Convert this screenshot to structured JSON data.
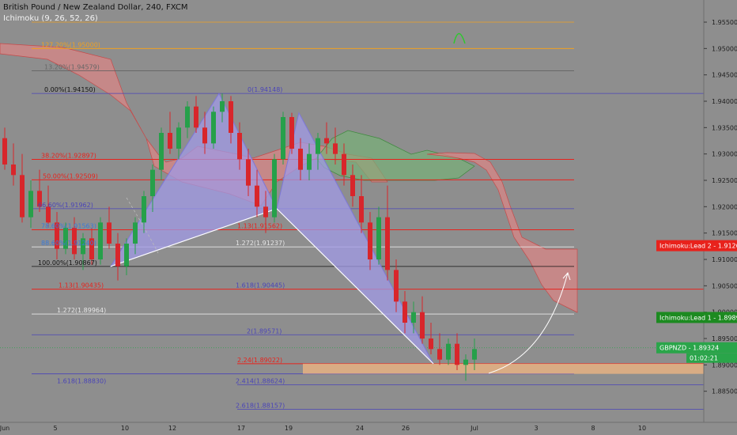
{
  "header": {
    "symbol_title": "British Pound / New Zealand Dollar, 240, FXCM",
    "indicator_label": "Ichimoku (9, 26, 52, 26)"
  },
  "price_axis": {
    "ticks": [
      "1.95500",
      "1.95000",
      "1.94500",
      "1.94000",
      "1.93500",
      "1.93000",
      "1.92500",
      "1.92000",
      "1.91500",
      "1.91000",
      "1.90500",
      "1.90000",
      "1.89500",
      "1.89000",
      "1.88500"
    ]
  },
  "time_axis": {
    "ticks": [
      "Jun",
      "5",
      "10",
      "12",
      "17",
      "19",
      "24",
      "26",
      "Jul",
      "3",
      "8",
      "10"
    ]
  },
  "axis_badges": [
    {
      "text": "Ichimoku:Lead 2",
      "value": "1.91261",
      "color": "#e8221c"
    },
    {
      "text": "Ichimoku:Lead 1",
      "value": "1.89899",
      "color": "#1c8a20"
    },
    {
      "text": "GBPNZD",
      "value": "1.89324",
      "color": "#2aa54a"
    }
  ],
  "countdown": "01:02:21",
  "colors": {
    "background": "#8e8e8e",
    "up_candle": "#26a04a",
    "down_candle": "#d8262b",
    "cloud_red": "#d88686",
    "cloud_green": "#77b077",
    "harmonic_fill": "#a09ae6",
    "fib_red": "#e8221c",
    "fib_blue": "#4a44b8",
    "fib_orange": "#f0a020",
    "target_zone": "#f2b680"
  },
  "fib_labels": [
    {
      "text": "0.00%(1.94150)",
      "color": "#111111"
    },
    {
      "text": "0(1.94148)",
      "color": "#4a44b8"
    },
    {
      "text": "38.20%(1.92897)",
      "color": "#e8221c"
    },
    {
      "text": "50.00%(1.92509)",
      "color": "#e8221c"
    },
    {
      "text": "66.60%(1.91962)",
      "color": "#4a44b8"
    },
    {
      "text": "78.60%(1.91563)",
      "color": "#3a7ad8"
    },
    {
      "text": "88.60%(1.91240)",
      "color": "#3a7ad8"
    },
    {
      "text": "100.00%(1.90867)",
      "color": "#111111"
    },
    {
      "text": "1.13(1.90435)",
      "color": "#e8221c"
    },
    {
      "text": "1.272(1.89964)",
      "color": "#e6e6e6"
    },
    {
      "text": "1.618(1.88830)",
      "color": "#4a44b8"
    },
    {
      "text": "1.13(1.91562)",
      "color": "#e8221c"
    },
    {
      "text": "1.272(1.91237)",
      "color": "#e6e6e6"
    },
    {
      "text": "1.618(1.90445)",
      "color": "#4a44b8"
    },
    {
      "text": "2(1.89571)",
      "color": "#4a44b8"
    },
    {
      "text": "2.24(1.89022)",
      "color": "#e8221c"
    },
    {
      "text": "2.414(1.88624)",
      "color": "#4a44b8"
    },
    {
      "text": "2.618(1.88157)",
      "color": "#4a44b8"
    },
    {
      "text": "13.20%(1.94579)",
      "color": "#666666"
    },
    {
      "text": "127.20%(1.95000)",
      "color": "#f0a020"
    }
  ],
  "chart_data": {
    "type": "line",
    "title": "British Pound / New Zealand Dollar, 240, FXCM",
    "ylim": [
      1.88,
      1.958
    ],
    "y_scale": "linear",
    "grid": false,
    "fib_levels": [
      1.955,
      1.95,
      1.94579,
      1.94148,
      1.92897,
      1.92509,
      1.91962,
      1.91562,
      1.91237,
      1.90867,
      1.90435,
      1.89964,
      1.89571,
      1.89022,
      1.8883,
      1.88624,
      1.88157
    ],
    "harmonic_x": [
      1.90867,
      1.94148,
      1.91962,
      1.9378,
      1.89022
    ],
    "target_zone": [
      1.8883,
      1.89022
    ],
    "current_price": 1.89324,
    "ichimoku_lead1": 1.89899,
    "ichimoku_lead2": 1.91261,
    "candles": [
      [
        1.933,
        1.935,
        1.927,
        1.928
      ],
      [
        1.928,
        1.932,
        1.924,
        1.926
      ],
      [
        1.926,
        1.93,
        1.917,
        1.918
      ],
      [
        1.918,
        1.925,
        1.916,
        1.923
      ],
      [
        1.923,
        1.927,
        1.919,
        1.92
      ],
      [
        1.92,
        1.924,
        1.916,
        1.917
      ],
      [
        1.917,
        1.919,
        1.91,
        1.912
      ],
      [
        1.912,
        1.917,
        1.911,
        1.916
      ],
      [
        1.916,
        1.918,
        1.91,
        1.911
      ],
      [
        1.911,
        1.915,
        1.908,
        1.914
      ],
      [
        1.914,
        1.916,
        1.909,
        1.91
      ],
      [
        1.91,
        1.918,
        1.909,
        1.917
      ],
      [
        1.917,
        1.92,
        1.912,
        1.913
      ],
      [
        1.913,
        1.915,
        1.906,
        1.9087
      ],
      [
        1.9087,
        1.914,
        1.907,
        1.913
      ],
      [
        1.913,
        1.918,
        1.911,
        1.917
      ],
      [
        1.917,
        1.923,
        1.915,
        1.922
      ],
      [
        1.922,
        1.928,
        1.919,
        1.927
      ],
      [
        1.927,
        1.935,
        1.925,
        1.934
      ],
      [
        1.934,
        1.938,
        1.93,
        1.931
      ],
      [
        1.931,
        1.936,
        1.929,
        1.935
      ],
      [
        1.935,
        1.94,
        1.933,
        1.939
      ],
      [
        1.939,
        1.941,
        1.934,
        1.935
      ],
      [
        1.935,
        1.938,
        1.93,
        1.932
      ],
      [
        1.932,
        1.939,
        1.931,
        1.938
      ],
      [
        1.938,
        1.9415,
        1.936,
        1.94
      ],
      [
        1.94,
        1.941,
        1.932,
        1.934
      ],
      [
        1.934,
        1.936,
        1.927,
        1.929
      ],
      [
        1.929,
        1.931,
        1.922,
        1.924
      ],
      [
        1.924,
        1.927,
        1.918,
        1.92
      ],
      [
        1.92,
        1.923,
        1.915,
        1.918
      ],
      [
        1.918,
        1.93,
        1.917,
        1.929
      ],
      [
        1.929,
        1.938,
        1.928,
        1.937
      ],
      [
        1.937,
        1.9378,
        1.93,
        1.931
      ],
      [
        1.931,
        1.933,
        1.925,
        1.927
      ],
      [
        1.927,
        1.932,
        1.925,
        1.93
      ],
      [
        1.93,
        1.934,
        1.927,
        1.933
      ],
      [
        1.933,
        1.936,
        1.93,
        1.932
      ],
      [
        1.932,
        1.935,
        1.928,
        1.93
      ],
      [
        1.93,
        1.932,
        1.924,
        1.926
      ],
      [
        1.926,
        1.928,
        1.92,
        1.922
      ],
      [
        1.922,
        1.926,
        1.915,
        1.917
      ],
      [
        1.917,
        1.919,
        1.908,
        1.91
      ],
      [
        1.91,
        1.92,
        1.909,
        1.918
      ],
      [
        1.918,
        1.924,
        1.906,
        1.908
      ],
      [
        1.908,
        1.91,
        1.9,
        1.902
      ],
      [
        1.902,
        1.904,
        1.896,
        1.898
      ],
      [
        1.898,
        1.902,
        1.896,
        1.9
      ],
      [
        1.9,
        1.903,
        1.894,
        1.895
      ],
      [
        1.895,
        1.898,
        1.892,
        1.893
      ],
      [
        1.893,
        1.896,
        1.89,
        1.891
      ],
      [
        1.891,
        1.895,
        1.89,
        1.894
      ],
      [
        1.894,
        1.896,
        1.889,
        1.89
      ],
      [
        1.89,
        1.892,
        1.887,
        1.891
      ],
      [
        1.891,
        1.895,
        1.889,
        1.893
      ]
    ]
  }
}
